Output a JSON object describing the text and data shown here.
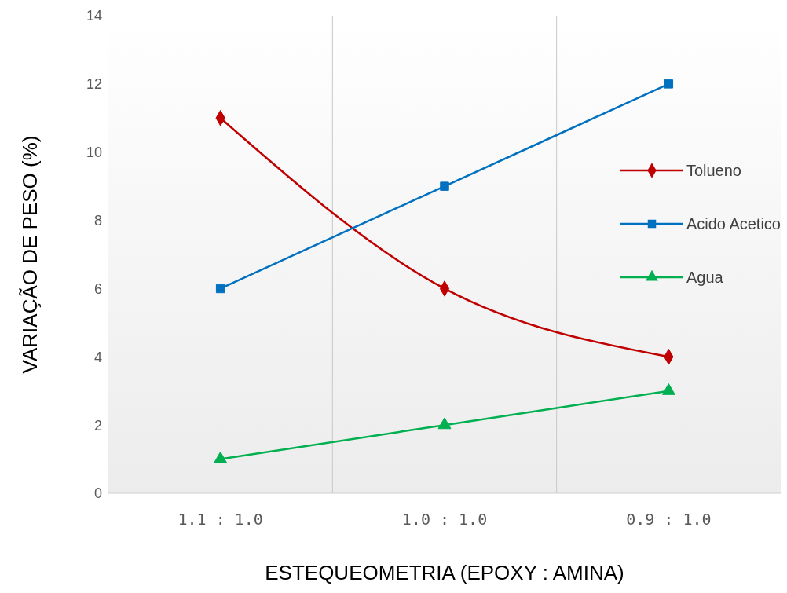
{
  "chart_data": {
    "type": "line",
    "xlabel": "ESTEQUEOMETRIA (EPOXY : AMINA)",
    "ylabel": "VARIAÇÃO DE PESO (%)",
    "categories": [
      "1.1 : 1.0",
      "1.0 : 1.0",
      "0.9 : 1.0"
    ],
    "ylim": [
      0,
      14
    ],
    "yticks": [
      0,
      2,
      4,
      6,
      8,
      10,
      12,
      14
    ],
    "grid": "x",
    "legend": "right",
    "series": [
      {
        "name": "Tolueno",
        "color": "#c00000",
        "marker": "diamond",
        "values": [
          11,
          6,
          4
        ]
      },
      {
        "name": "Acido Acetico",
        "color": "#0070c0",
        "marker": "square",
        "values": [
          6,
          9,
          12
        ]
      },
      {
        "name": "Agua",
        "color": "#00b050",
        "marker": "triangle",
        "values": [
          1,
          2,
          3
        ]
      }
    ]
  }
}
